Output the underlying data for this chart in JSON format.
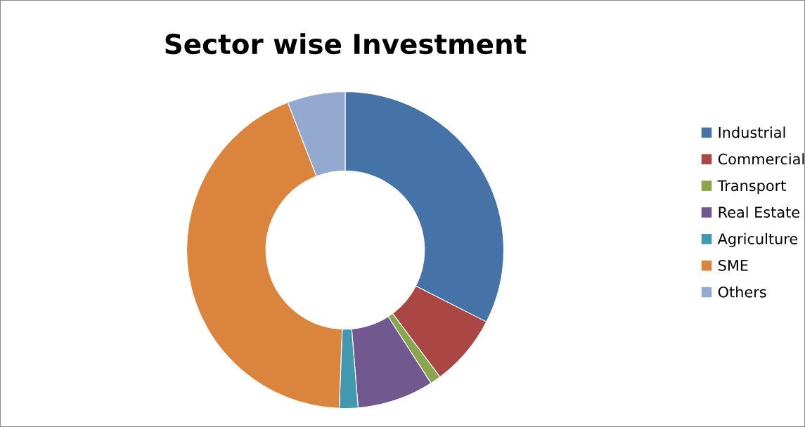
{
  "chart_data": {
    "type": "donut",
    "title": "Sector wise Investment",
    "categories": [
      "Industrial",
      "Commercial",
      "Transport",
      "Real Estate",
      "Agriculture",
      "SME",
      "Others"
    ],
    "values": [
      32.5,
      7.3,
      1.1,
      7.8,
      1.9,
      43.5,
      5.9
    ],
    "colors": [
      "#4572a7",
      "#aa4643",
      "#89a54e",
      "#71588f",
      "#4198af",
      "#db843d",
      "#93a9cf"
    ],
    "legend": "right"
  }
}
